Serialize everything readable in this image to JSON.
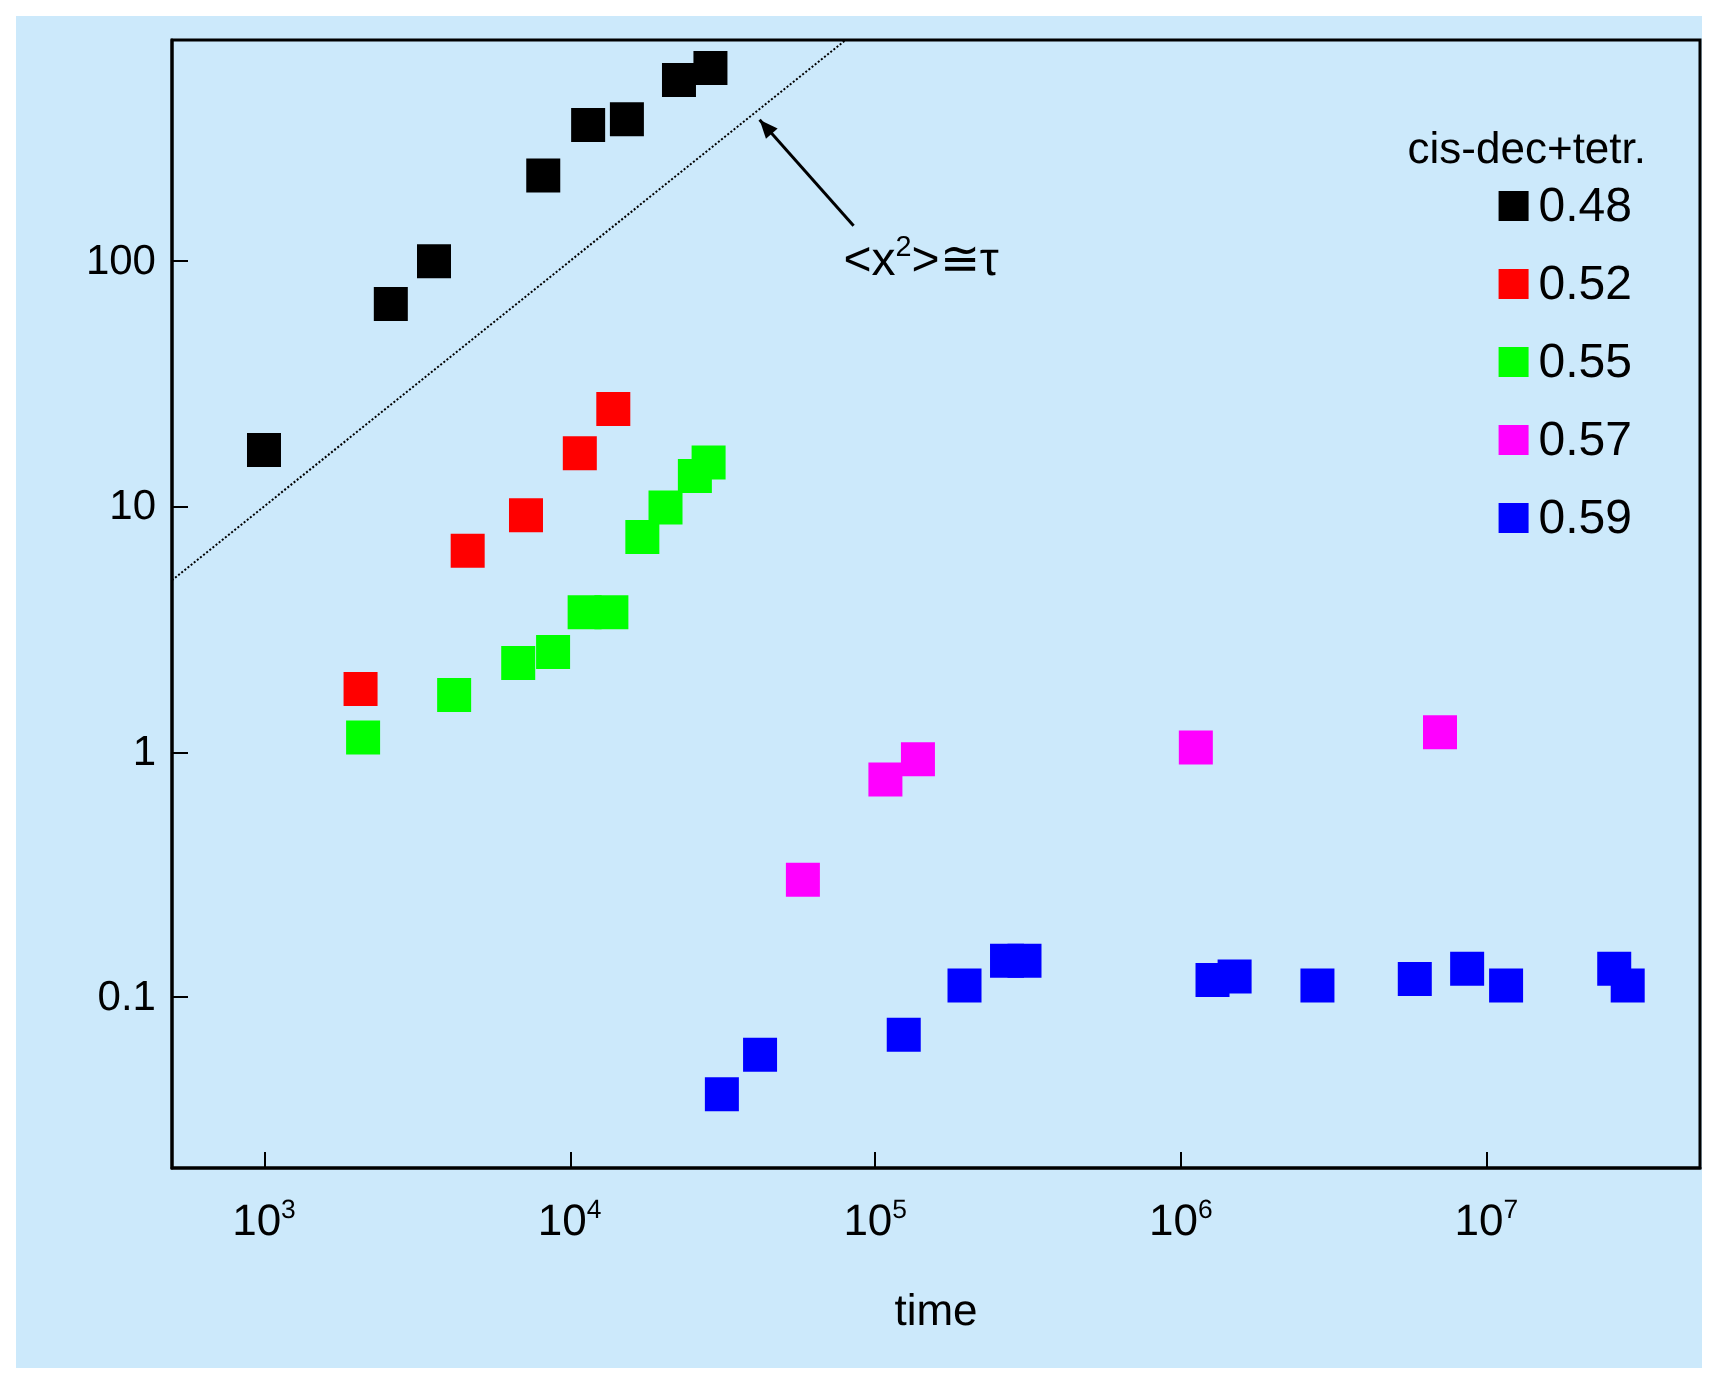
{
  "chart_data": {
    "type": "scatter",
    "xlabel": "time",
    "legend_title": "cis-dec+tetr.",
    "log": "xy",
    "marker": "square",
    "grid": false,
    "legend": "top right",
    "xlim": [
      500,
      50000000
    ],
    "ylim": [
      0.02,
      800
    ],
    "xticks": [
      {
        "value": 1000,
        "label": "10$^{3}$"
      },
      {
        "value": 10000,
        "label": "10$^{4}$"
      },
      {
        "value": 100000,
        "label": "10$^{5}$"
      },
      {
        "value": 1000000,
        "label": "10$^{6}$"
      },
      {
        "value": 10000000,
        "label": "10$^{7}$"
      }
    ],
    "yticks": [
      0.1,
      1,
      10,
      100
    ],
    "annotations": [
      {
        "text": "<x$^{2}$>≅τ",
        "x": 40000,
        "y": 400
      }
    ],
    "series": [
      {
        "name": "0.48",
        "color": "#000000",
        "x": [
          1000,
          2600,
          3600,
          8200,
          11500,
          15400,
          22800,
          28900
        ],
        "values": [
          17,
          67,
          100,
          224,
          360,
          380,
          550,
          615
        ]
      },
      {
        "name": "0.52",
        "color": "#ff0000",
        "x": [
          2070,
          4640,
          7200,
          10800,
          13900
        ],
        "values": [
          1.8,
          6.6,
          9.2,
          16.5,
          25
        ]
      },
      {
        "name": "0.55",
        "color": "#00ff00",
        "x": [
          2110,
          4190,
          6790,
          8830,
          11200,
          13700,
          17300,
          20600,
          25700,
          28500
        ],
        "values": [
          1.14,
          1.7,
          2.3,
          2.55,
          3.7,
          3.7,
          7.5,
          9.9,
          13.3,
          15.1
        ]
      },
      {
        "name": "0.57",
        "color": "#ff00ff",
        "x": [
          58000,
          108000,
          138000,
          1120000,
          7050000
        ],
        "values": [
          0.3,
          0.77,
          0.93,
          1.04,
          1.2
        ]
      },
      {
        "name": "0.59",
        "color": "#0000ff",
        "x": [
          31500,
          42000,
          124000,
          196000,
          270000,
          308000,
          1270000,
          1500000,
          2800000,
          5830000,
          8650000,
          11600000,
          26200000,
          29000000
        ],
        "values": [
          0.04,
          0.058,
          0.07,
          0.111,
          0.14,
          0.14,
          0.117,
          0.121,
          0.111,
          0.118,
          0.13,
          0.111,
          0.13,
          0.111
        ]
      },
      {
        "type": "line",
        "marker": "none",
        "line_style": "dotted",
        "color": "#000000",
        "x": [
          500,
          80000
        ],
        "values": [
          5,
          800
        ]
      }
    ]
  }
}
